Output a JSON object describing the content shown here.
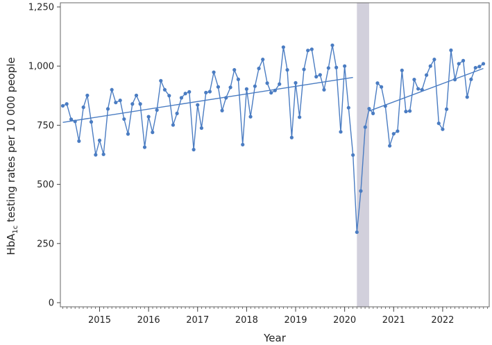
{
  "chart_data": {
    "type": "line",
    "title": "",
    "xlabel": "Year",
    "ylabel_main": "HbA",
    "ylabel_sub": "1c",
    "ylabel_rest": " testing rates per 10 000 people",
    "ylim": [
      0,
      1250
    ],
    "xlim": [
      2014.2,
      2022.95
    ],
    "y_ticks": [
      {
        "value": 0,
        "label": "0"
      },
      {
        "value": 250,
        "label": "250"
      },
      {
        "value": 500,
        "label": "500"
      },
      {
        "value": 750,
        "label": "750"
      },
      {
        "value": 1000,
        "label": "1,000"
      },
      {
        "value": 1250,
        "label": "1,250"
      }
    ],
    "x_ticks": [
      {
        "value": 2015,
        "label": "2015"
      },
      {
        "value": 2016,
        "label": "2016"
      },
      {
        "value": 2017,
        "label": "2017"
      },
      {
        "value": 2018,
        "label": "2018"
      },
      {
        "value": 2019,
        "label": "2019"
      },
      {
        "value": 2020,
        "label": "2020"
      },
      {
        "value": 2021,
        "label": "2021"
      },
      {
        "value": 2022,
        "label": "2022"
      }
    ],
    "shaded_region": {
      "x_start": 2020.25,
      "x_end": 2020.5,
      "color": "#d2d0dc"
    },
    "series_color": "#4a7cc2",
    "series": [
      {
        "values": [
          {
            "x": 2014.25,
            "y": 832
          },
          {
            "x": 2014.33,
            "y": 840
          },
          {
            "x": 2014.42,
            "y": 775
          },
          {
            "x": 2014.5,
            "y": 766
          },
          {
            "x": 2014.58,
            "y": 683
          },
          {
            "x": 2014.67,
            "y": 826
          },
          {
            "x": 2014.75,
            "y": 876
          },
          {
            "x": 2014.83,
            "y": 764
          },
          {
            "x": 2014.92,
            "y": 625
          },
          {
            "x": 2015.0,
            "y": 686
          },
          {
            "x": 2015.08,
            "y": 627
          },
          {
            "x": 2015.17,
            "y": 819
          },
          {
            "x": 2015.25,
            "y": 900
          },
          {
            "x": 2015.33,
            "y": 846
          },
          {
            "x": 2015.42,
            "y": 855
          },
          {
            "x": 2015.5,
            "y": 776
          },
          {
            "x": 2015.58,
            "y": 713
          },
          {
            "x": 2015.67,
            "y": 840
          },
          {
            "x": 2015.75,
            "y": 876
          },
          {
            "x": 2015.83,
            "y": 840
          },
          {
            "x": 2015.92,
            "y": 657
          },
          {
            "x": 2016.0,
            "y": 786
          },
          {
            "x": 2016.08,
            "y": 720
          },
          {
            "x": 2016.17,
            "y": 814
          },
          {
            "x": 2016.25,
            "y": 938
          },
          {
            "x": 2016.33,
            "y": 900
          },
          {
            "x": 2016.42,
            "y": 875
          },
          {
            "x": 2016.5,
            "y": 751
          },
          {
            "x": 2016.58,
            "y": 800
          },
          {
            "x": 2016.67,
            "y": 866
          },
          {
            "x": 2016.75,
            "y": 884
          },
          {
            "x": 2016.83,
            "y": 891
          },
          {
            "x": 2016.92,
            "y": 647
          },
          {
            "x": 2017.0,
            "y": 836
          },
          {
            "x": 2017.08,
            "y": 738
          },
          {
            "x": 2017.17,
            "y": 888
          },
          {
            "x": 2017.25,
            "y": 892
          },
          {
            "x": 2017.33,
            "y": 974
          },
          {
            "x": 2017.42,
            "y": 912
          },
          {
            "x": 2017.5,
            "y": 812
          },
          {
            "x": 2017.58,
            "y": 866
          },
          {
            "x": 2017.67,
            "y": 910
          },
          {
            "x": 2017.75,
            "y": 984
          },
          {
            "x": 2017.83,
            "y": 944
          },
          {
            "x": 2017.92,
            "y": 668
          },
          {
            "x": 2018.0,
            "y": 903
          },
          {
            "x": 2018.08,
            "y": 786
          },
          {
            "x": 2018.17,
            "y": 915
          },
          {
            "x": 2018.25,
            "y": 990
          },
          {
            "x": 2018.33,
            "y": 1028
          },
          {
            "x": 2018.42,
            "y": 928
          },
          {
            "x": 2018.5,
            "y": 887
          },
          {
            "x": 2018.58,
            "y": 897
          },
          {
            "x": 2018.67,
            "y": 924
          },
          {
            "x": 2018.75,
            "y": 1080
          },
          {
            "x": 2018.83,
            "y": 984
          },
          {
            "x": 2018.92,
            "y": 698
          },
          {
            "x": 2019.0,
            "y": 929
          },
          {
            "x": 2019.08,
            "y": 784
          },
          {
            "x": 2019.17,
            "y": 986
          },
          {
            "x": 2019.25,
            "y": 1066
          },
          {
            "x": 2019.33,
            "y": 1071
          },
          {
            "x": 2019.42,
            "y": 955
          },
          {
            "x": 2019.5,
            "y": 963
          },
          {
            "x": 2019.58,
            "y": 900
          },
          {
            "x": 2019.67,
            "y": 992
          },
          {
            "x": 2019.75,
            "y": 1088
          },
          {
            "x": 2019.83,
            "y": 994
          },
          {
            "x": 2019.92,
            "y": 722
          },
          {
            "x": 2020.0,
            "y": 1000
          },
          {
            "x": 2020.08,
            "y": 824
          },
          {
            "x": 2020.17,
            "y": 624
          },
          {
            "x": 2020.25,
            "y": 298
          },
          {
            "x": 2020.33,
            "y": 472
          },
          {
            "x": 2020.42,
            "y": 742
          },
          {
            "x": 2020.5,
            "y": 820
          },
          {
            "x": 2020.58,
            "y": 800
          },
          {
            "x": 2020.67,
            "y": 928
          },
          {
            "x": 2020.75,
            "y": 912
          },
          {
            "x": 2020.83,
            "y": 831
          },
          {
            "x": 2020.92,
            "y": 663
          },
          {
            "x": 2021.0,
            "y": 714
          },
          {
            "x": 2021.08,
            "y": 725
          },
          {
            "x": 2021.17,
            "y": 982
          },
          {
            "x": 2021.25,
            "y": 808
          },
          {
            "x": 2021.33,
            "y": 810
          },
          {
            "x": 2021.42,
            "y": 943
          },
          {
            "x": 2021.5,
            "y": 904
          },
          {
            "x": 2021.58,
            "y": 900
          },
          {
            "x": 2021.67,
            "y": 962
          },
          {
            "x": 2021.75,
            "y": 1000
          },
          {
            "x": 2021.83,
            "y": 1028
          },
          {
            "x": 2021.92,
            "y": 758
          },
          {
            "x": 2022.0,
            "y": 733
          },
          {
            "x": 2022.08,
            "y": 818
          },
          {
            "x": 2022.17,
            "y": 1067
          },
          {
            "x": 2022.25,
            "y": 943
          },
          {
            "x": 2022.33,
            "y": 1010
          },
          {
            "x": 2022.42,
            "y": 1023
          },
          {
            "x": 2022.5,
            "y": 869
          },
          {
            "x": 2022.58,
            "y": 944
          },
          {
            "x": 2022.67,
            "y": 993
          },
          {
            "x": 2022.75,
            "y": 998
          },
          {
            "x": 2022.83,
            "y": 1010
          }
        ]
      }
    ],
    "trend_lines": [
      {
        "x_start": 2014.25,
        "y_start": 762,
        "x_end": 2020.17,
        "y_end": 952
      },
      {
        "x_start": 2020.5,
        "y_start": 810,
        "x_end": 2022.83,
        "y_end": 990
      }
    ],
    "grid": false
  }
}
